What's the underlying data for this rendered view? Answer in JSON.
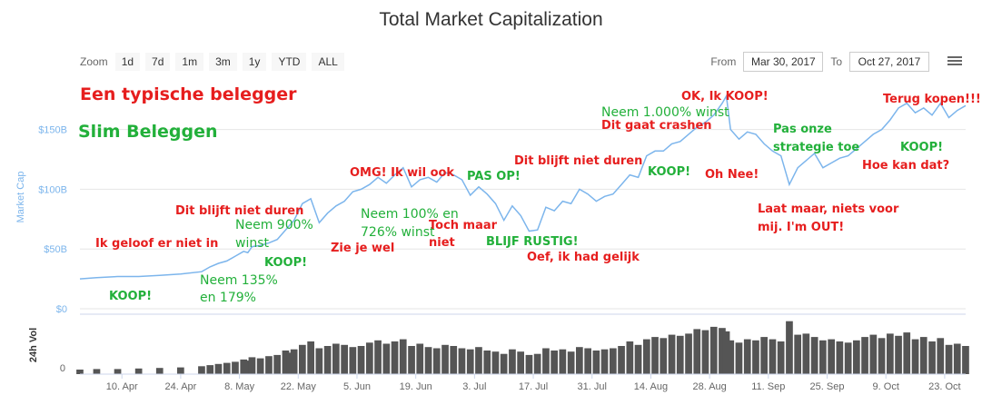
{
  "chart_data": {
    "type": "line",
    "title": "Total Market Capitalization",
    "ylabel": "Market Cap",
    "volume_label": "24h Vol",
    "yticks": [
      "$0",
      "$50B",
      "$100B",
      "$150B"
    ],
    "ytick_values": [
      0,
      50,
      100,
      150
    ],
    "vol_yticks": [
      "0"
    ],
    "ylim": [
      0,
      190
    ],
    "xticks": [
      "10. Apr",
      "24. Apr",
      "8. May",
      "22. May",
      "5. Jun",
      "19. Jun",
      "3. Jul",
      "17. Jul",
      "31. Jul",
      "14. Aug",
      "28. Aug",
      "11. Sep",
      "25. Sep",
      "9. Oct",
      "23. Oct"
    ],
    "xtick_days": [
      11,
      25,
      39,
      53,
      67,
      81,
      95,
      109,
      123,
      137,
      151,
      165,
      179,
      193,
      207
    ],
    "x_range_days": [
      1,
      212
    ],
    "series": [
      {
        "name": "Market Cap",
        "x": [
          1,
          5,
          10,
          15,
          20,
          25,
          30,
          32,
          34,
          36,
          38,
          40,
          41,
          42,
          44,
          46,
          48,
          50,
          51,
          52,
          54,
          56,
          58,
          60,
          62,
          64,
          66,
          68,
          70,
          72,
          74,
          76,
          78,
          80,
          82,
          84,
          86,
          88,
          90,
          92,
          94,
          96,
          98,
          100,
          102,
          104,
          106,
          108,
          110,
          112,
          114,
          116,
          118,
          120,
          122,
          124,
          126,
          128,
          130,
          132,
          134,
          136,
          138,
          140,
          142,
          144,
          146,
          148,
          150,
          152,
          154,
          155,
          156,
          158,
          160,
          162,
          164,
          166,
          168,
          170,
          172,
          174,
          176,
          178,
          180,
          182,
          184,
          186,
          188,
          190,
          192,
          194,
          196,
          198,
          200,
          202,
          204,
          206,
          208,
          210,
          212
        ],
        "values": [
          25,
          26,
          27,
          27,
          28,
          29,
          31,
          35,
          38,
          40,
          44,
          48,
          47,
          52,
          53,
          55,
          58,
          66,
          70,
          74,
          88,
          92,
          72,
          80,
          86,
          90,
          98,
          100,
          104,
          110,
          105,
          112,
          118,
          102,
          108,
          110,
          106,
          114,
          112,
          108,
          95,
          102,
          96,
          88,
          74,
          86,
          78,
          65,
          66,
          85,
          82,
          90,
          88,
          100,
          96,
          90,
          94,
          96,
          104,
          112,
          110,
          128,
          132,
          132,
          138,
          140,
          146,
          152,
          156,
          162,
          172,
          178,
          150,
          142,
          148,
          146,
          138,
          132,
          128,
          104,
          118,
          124,
          130,
          118,
          122,
          126,
          128,
          134,
          140,
          146,
          150,
          158,
          168,
          172,
          164,
          168,
          162,
          172,
          160,
          166,
          170
        ]
      }
    ],
    "volume_values": [
      8,
      9,
      9,
      10,
      11,
      12,
      14,
      16,
      18,
      20,
      22,
      26,
      24,
      30,
      28,
      32,
      34,
      42,
      38,
      44,
      52,
      58,
      46,
      50,
      54,
      52,
      48,
      50,
      56,
      60,
      54,
      58,
      62,
      50,
      54,
      48,
      46,
      52,
      50,
      46,
      44,
      48,
      42,
      40,
      36,
      44,
      40,
      34,
      36,
      46,
      42,
      44,
      40,
      48,
      46,
      42,
      44,
      46,
      50,
      58,
      52,
      62,
      66,
      64,
      70,
      68,
      72,
      80,
      78,
      84,
      82,
      76,
      60,
      56,
      62,
      60,
      66,
      62,
      58,
      94,
      70,
      72,
      66,
      60,
      62,
      58,
      56,
      60,
      66,
      70,
      64,
      72,
      68,
      74,
      62,
      66,
      58,
      64,
      52,
      54,
      50
    ]
  },
  "toolbar": {
    "zoom_label": "Zoom",
    "buttons": [
      "1d",
      "7d",
      "1m",
      "3m",
      "1y",
      "YTD",
      "ALL"
    ]
  },
  "range": {
    "from_label": "From",
    "from_value": "Mar 30, 2017",
    "to_label": "To",
    "to_value": "Oct 27, 2017"
  },
  "legend": {
    "red": "Een typische belegger",
    "green": "Slim Beleggen"
  },
  "annotations": {
    "a1": "Ik geloof er niet in",
    "a2": "KOOP!",
    "a3": "Neem 135%",
    "a4": "en 179%",
    "a5": "Dit blijft niet duren",
    "a6": "Neem 900%",
    "a7": "winst",
    "a8": "KOOP!",
    "a9": "Zie je wel",
    "a10": "OMG! Ik wil ook",
    "a11": "Neem 100% en",
    "a12": "726% winst",
    "a13": "Toch maar",
    "a14": "niet",
    "a15": "PAS OP!",
    "a16": "BLIJF RUSTIG!",
    "a17": "Dit blijft niet duren",
    "a18": "Oef, ik had gelijk",
    "a19": "Neem 1.000% winst",
    "a20": "Dit gaat crashen",
    "a21": "OK, Ik KOOP!",
    "a22": "KOOP!",
    "a23": "Oh Nee!",
    "a24": "Pas onze",
    "a25": "strategie toe",
    "a26": "Laat maar, niets voor",
    "a27": "mij. I'm OUT!",
    "a28": "Terug kopen!!!",
    "a29": "KOOP!",
    "a30": "Hoe kan dat?"
  },
  "colors": {
    "line": "#7cb5ec",
    "volume": "#555555",
    "red_text": "#e61e1e",
    "green_text": "#22b03a"
  }
}
